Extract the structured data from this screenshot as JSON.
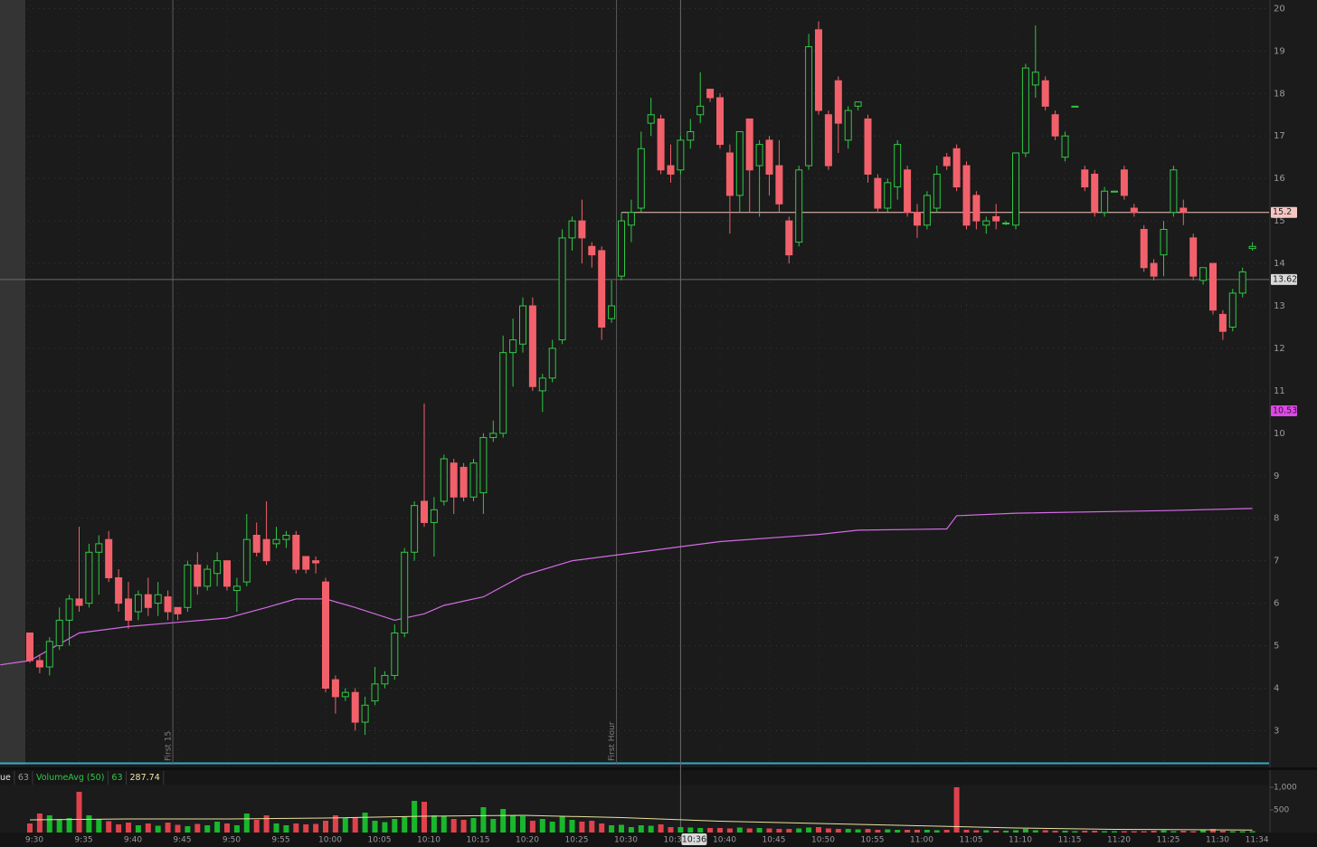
{
  "chart_data": {
    "type": "candlestick",
    "x": [
      "9:30",
      "9:31",
      "9:32",
      "9:33",
      "9:34",
      "9:35",
      "9:36",
      "9:37",
      "9:38",
      "9:39",
      "9:40",
      "9:41",
      "9:42",
      "9:43",
      "9:44",
      "9:45",
      "9:46",
      "9:47",
      "9:48",
      "9:49",
      "9:50",
      "9:51",
      "9:52",
      "9:53",
      "9:54",
      "9:55",
      "9:56",
      "9:57",
      "9:58",
      "9:59",
      "10:00",
      "10:01",
      "10:02",
      "10:03",
      "10:04",
      "10:05",
      "10:06",
      "10:07",
      "10:08",
      "10:09",
      "10:10",
      "10:11",
      "10:12",
      "10:13",
      "10:14",
      "10:15",
      "10:16",
      "10:17",
      "10:18",
      "10:19",
      "10:20",
      "10:21",
      "10:22",
      "10:23",
      "10:24",
      "10:25",
      "10:26",
      "10:27",
      "10:28",
      "10:29",
      "10:30",
      "10:31",
      "10:32",
      "10:33",
      "10:34",
      "10:35",
      "10:36",
      "10:37",
      "10:38",
      "10:39",
      "10:40",
      "10:41",
      "10:42",
      "10:43",
      "10:44",
      "10:45",
      "10:46",
      "10:47",
      "10:48",
      "10:49",
      "10:50",
      "10:51",
      "10:52",
      "10:53",
      "10:54",
      "10:55",
      "10:56",
      "10:57",
      "10:58",
      "10:59",
      "11:00",
      "11:01",
      "11:02",
      "11:03",
      "11:04",
      "11:05",
      "11:06",
      "11:07",
      "11:08",
      "11:09",
      "11:10",
      "11:11",
      "11:12",
      "11:13",
      "11:14",
      "11:15",
      "11:16",
      "11:17",
      "11:18",
      "11:19",
      "11:20",
      "11:21",
      "11:22",
      "11:23",
      "11:24",
      "11:25",
      "11:26",
      "11:27",
      "11:28",
      "11:29",
      "11:30",
      "11:31",
      "11:32",
      "11:33",
      "11:34"
    ],
    "open": [
      5.3,
      4.65,
      4.5,
      5.0,
      5.6,
      6.1,
      6.0,
      7.2,
      7.5,
      6.6,
      6.1,
      5.8,
      6.2,
      6.0,
      6.15,
      5.9,
      5.9,
      6.9,
      6.4,
      6.7,
      7.0,
      6.3,
      6.5,
      7.6,
      7.5,
      7.4,
      7.5,
      7.6,
      7.1,
      7.0,
      6.5,
      4.2,
      3.8,
      3.9,
      3.2,
      3.7,
      4.1,
      4.3,
      5.3,
      7.2,
      8.4,
      7.9,
      8.4,
      9.3,
      9.2,
      8.5,
      8.6,
      9.9,
      10.0,
      11.9,
      12.1,
      13.0,
      11.0,
      11.3,
      12.2,
      14.6,
      15.0,
      14.4,
      14.3,
      12.7,
      13.7,
      14.9,
      15.3,
      17.3,
      17.4,
      16.3,
      16.2,
      16.9,
      17.5,
      18.1,
      17.9,
      16.6,
      15.6,
      17.4,
      16.3,
      16.9,
      16.3,
      15.0,
      14.5,
      16.3,
      19.5,
      17.5,
      18.3,
      16.9,
      17.7,
      17.4,
      16.0,
      15.3,
      15.8,
      16.2,
      15.2,
      14.9,
      15.3,
      16.5,
      16.7,
      16.3,
      15.6,
      14.9,
      15.1,
      14.95,
      14.9,
      16.6,
      18.2,
      18.3,
      17.5,
      16.5,
      17.7,
      16.2,
      16.1,
      15.2,
      15.7,
      16.2,
      15.3,
      14.8,
      14.0,
      14.2,
      15.2,
      15.3,
      14.6,
      13.6,
      14.0,
      12.8,
      12.5,
      13.3,
      14.35
    ],
    "high": [
      5.3,
      4.8,
      5.2,
      5.9,
      6.2,
      7.8,
      7.4,
      7.6,
      7.7,
      6.8,
      6.5,
      6.3,
      6.6,
      6.5,
      6.3,
      5.9,
      7.0,
      7.2,
      6.9,
      7.2,
      7.0,
      6.6,
      8.1,
      7.9,
      8.4,
      7.8,
      7.7,
      7.7,
      7.1,
      7.1,
      6.6,
      4.3,
      4.0,
      4.0,
      3.8,
      4.5,
      4.4,
      5.5,
      7.3,
      8.4,
      10.7,
      8.5,
      9.5,
      9.4,
      9.3,
      9.4,
      10.0,
      10.3,
      12.3,
      12.7,
      13.2,
      13.2,
      11.4,
      12.2,
      14.8,
      15.1,
      15.5,
      14.5,
      14.4,
      13.6,
      15.2,
      15.5,
      17.1,
      17.9,
      17.5,
      16.8,
      17.0,
      17.4,
      18.5,
      18.1,
      18.0,
      16.8,
      17.1,
      17.4,
      16.9,
      17.0,
      16.9,
      15.1,
      16.3,
      19.4,
      19.7,
      17.6,
      18.4,
      17.7,
      17.8,
      17.5,
      16.1,
      16.0,
      16.9,
      16.3,
      15.4,
      15.7,
      16.3,
      16.6,
      16.8,
      16.4,
      15.7,
      15.1,
      15.4,
      15.0,
      16.6,
      18.7,
      19.6,
      18.4,
      17.6,
      17.1,
      17.7,
      16.3,
      16.2,
      15.8,
      15.7,
      16.3,
      15.4,
      14.9,
      14.1,
      15.0,
      16.3,
      15.5,
      14.7,
      13.9,
      14.0,
      12.9,
      13.4,
      13.9,
      14.5
    ],
    "low": [
      4.6,
      4.35,
      4.3,
      4.9,
      5.0,
      5.8,
      5.9,
      6.2,
      6.5,
      5.8,
      5.4,
      5.6,
      5.7,
      5.7,
      5.6,
      5.6,
      5.8,
      6.2,
      6.3,
      6.4,
      6.3,
      5.8,
      6.4,
      7.1,
      6.9,
      7.3,
      7.3,
      6.7,
      6.7,
      6.7,
      3.9,
      3.4,
      3.7,
      3.0,
      2.9,
      3.6,
      4.0,
      4.2,
      5.2,
      7.0,
      7.8,
      7.1,
      8.3,
      8.1,
      8.4,
      8.4,
      8.1,
      9.8,
      9.9,
      11.1,
      11.9,
      11.0,
      10.5,
      11.2,
      12.1,
      14.3,
      14.0,
      13.9,
      12.2,
      12.6,
      13.6,
      14.5,
      15.2,
      17.0,
      16.1,
      15.9,
      16.1,
      16.7,
      17.3,
      17.8,
      16.7,
      14.7,
      15.2,
      15.2,
      15.1,
      15.6,
      15.2,
      14.0,
      14.4,
      16.2,
      17.5,
      16.2,
      16.6,
      16.7,
      17.6,
      15.9,
      15.2,
      15.2,
      15.5,
      15.1,
      14.6,
      14.8,
      15.2,
      16.2,
      15.7,
      14.8,
      14.8,
      14.7,
      14.8,
      14.9,
      14.8,
      16.5,
      17.9,
      17.6,
      16.9,
      16.4,
      17.7,
      15.7,
      15.1,
      15.1,
      15.7,
      15.5,
      15.1,
      13.8,
      13.6,
      13.7,
      15.1,
      14.9,
      13.6,
      13.5,
      12.8,
      12.2,
      12.4,
      13.2,
      14.3
    ],
    "close": [
      4.65,
      4.5,
      5.1,
      5.6,
      6.1,
      5.95,
      7.2,
      7.4,
      6.6,
      6.0,
      5.6,
      6.2,
      5.9,
      6.2,
      5.8,
      5.75,
      6.9,
      6.4,
      6.8,
      7.0,
      6.4,
      6.4,
      7.5,
      7.2,
      7.0,
      7.5,
      7.6,
      6.8,
      6.8,
      6.95,
      4.0,
      3.8,
      3.9,
      3.2,
      3.6,
      4.1,
      4.3,
      5.3,
      7.2,
      8.3,
      7.9,
      8.2,
      9.4,
      8.5,
      8.5,
      9.3,
      9.9,
      10.0,
      11.9,
      12.2,
      13.0,
      11.1,
      11.3,
      12.0,
      14.6,
      15.0,
      14.6,
      14.2,
      12.5,
      13.0,
      15.0,
      15.2,
      16.7,
      17.5,
      16.2,
      16.1,
      16.9,
      17.1,
      17.7,
      17.9,
      16.8,
      15.6,
      17.1,
      16.2,
      16.8,
      16.1,
      15.4,
      14.2,
      16.2,
      19.1,
      17.6,
      16.3,
      17.3,
      17.6,
      17.8,
      16.1,
      15.3,
      15.9,
      16.8,
      15.2,
      14.9,
      15.6,
      16.1,
      16.3,
      15.8,
      14.9,
      15.0,
      15.0,
      15.0,
      14.95,
      16.6,
      18.6,
      18.5,
      17.7,
      17.0,
      17.0,
      17.7,
      15.8,
      15.2,
      15.7,
      15.7,
      15.6,
      15.2,
      13.9,
      13.7,
      14.8,
      16.2,
      15.2,
      13.7,
      13.9,
      12.9,
      12.4,
      13.3,
      13.8,
      14.4
    ],
    "up_color": "#2fc944",
    "down_color": "#f2616b",
    "ylim": [
      2.2,
      20.2
    ],
    "yticks": [
      3,
      4,
      5,
      6,
      7,
      8,
      9,
      10,
      11,
      12,
      13,
      14,
      15,
      16,
      17,
      18,
      19,
      20
    ],
    "xticks": [
      "9:30",
      "9:35",
      "9:40",
      "9:45",
      "9:50",
      "9:55",
      "10:00",
      "10:05",
      "10:10",
      "10:15",
      "10:20",
      "10:25",
      "10:30",
      "10:35",
      "10:40",
      "10:45",
      "10:50",
      "10:55",
      "11:00",
      "11:05",
      "11:10",
      "11:15",
      "11:20",
      "11:25",
      "11:30",
      "11:34"
    ],
    "vwap": {
      "color": "#d56be6",
      "x": [
        "9:27",
        "9:30",
        "9:35",
        "9:40",
        "9:45",
        "9:50",
        "9:54",
        "9:57",
        "10:00",
        "10:03",
        "10:07",
        "10:10",
        "10:12",
        "10:16",
        "10:20",
        "10:25",
        "10:30",
        "10:40",
        "10:50",
        "10:54",
        "11:03",
        "11:04",
        "11:10",
        "11:25",
        "11:34"
      ],
      "values": [
        4.55,
        4.65,
        5.3,
        5.45,
        5.55,
        5.65,
        5.9,
        6.1,
        6.1,
        5.9,
        5.6,
        5.75,
        5.95,
        6.15,
        6.65,
        7.0,
        7.15,
        7.45,
        7.62,
        7.72,
        7.75,
        8.06,
        8.12,
        8.18,
        8.23
      ]
    },
    "markers": [
      {
        "x": "9:45",
        "label": "First 15"
      },
      {
        "x": "10:30",
        "label": "First Hour"
      }
    ],
    "price_tags": [
      {
        "value": 15.2,
        "color": "#f7c6c2",
        "line_from": "10:30"
      },
      {
        "value": 10.53,
        "color": "#e046e8"
      }
    ],
    "crosshair": {
      "x": "10:36",
      "y": 13.62
    },
    "volume": {
      "header": [
        {
          "text": "ue",
          "color": "#e6e6e6"
        },
        {
          "text": 63,
          "color": "#9a9a9a"
        },
        {
          "text": "VolumeAvg (50)",
          "color": "#2fc944"
        },
        {
          "text": 63,
          "color": "#2fc944"
        },
        {
          "text": 287.74,
          "color": "#f0e6a8"
        }
      ],
      "ylim": [
        0,
        1000
      ],
      "yticks": [
        {
          "value": 1000,
          "label": "1,000"
        },
        500
      ],
      "values": [
        200,
        420,
        380,
        300,
        320,
        900,
        380,
        300,
        250,
        180,
        220,
        160,
        200,
        150,
        220,
        170,
        140,
        190,
        160,
        240,
        200,
        160,
        420,
        280,
        380,
        200,
        160,
        200,
        180,
        190,
        260,
        380,
        320,
        330,
        440,
        260,
        230,
        300,
        360,
        700,
        680,
        380,
        360,
        300,
        280,
        320,
        560,
        300,
        520,
        380,
        360,
        260,
        300,
        240,
        350,
        280,
        240,
        260,
        200,
        160,
        170,
        120,
        160,
        150,
        180,
        120,
        120,
        110,
        100,
        100,
        100,
        90,
        110,
        90,
        100,
        90,
        80,
        80,
        90,
        110,
        120,
        90,
        80,
        80,
        70,
        80,
        60,
        70,
        60,
        60,
        60,
        60,
        50,
        60,
        1000,
        60,
        50,
        50,
        40,
        40,
        50,
        80,
        50,
        50,
        40,
        40,
        30,
        40,
        40,
        30,
        30,
        30,
        30,
        30,
        40,
        50,
        30,
        40,
        30,
        60,
        80,
        40,
        30,
        30,
        30
      ],
      "avg": {
        "color": "#e8e2a0",
        "x": [
          "9:30",
          "9:40",
          "9:50",
          "10:00",
          "10:10",
          "10:20",
          "10:30",
          "10:40",
          "10:50",
          "11:00",
          "11:10",
          "11:20",
          "11:30",
          "11:34"
        ],
        "values": [
          280,
          300,
          300,
          320,
          360,
          380,
          330,
          250,
          200,
          150,
          100,
          70,
          60,
          55
        ]
      }
    }
  }
}
